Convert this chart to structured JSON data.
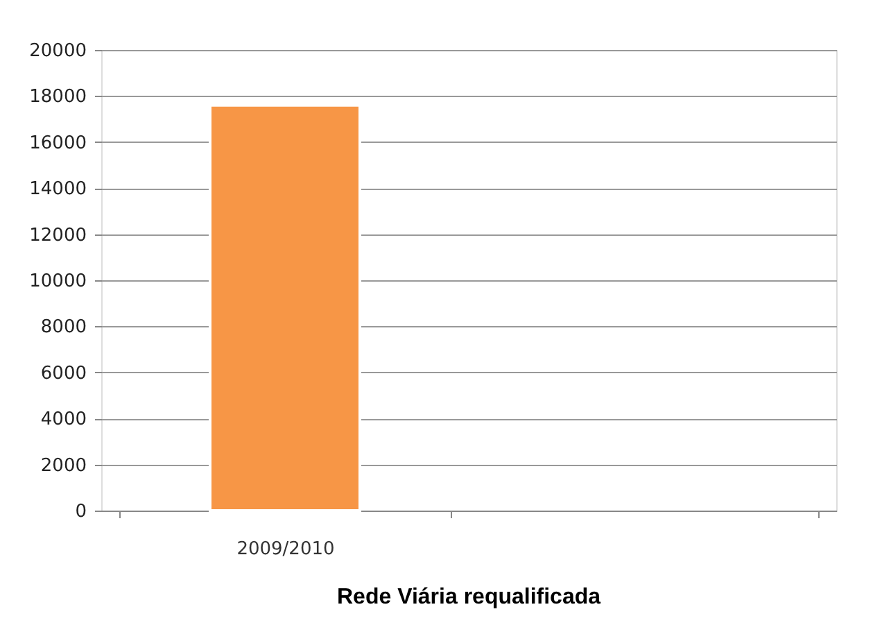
{
  "chart_data": {
    "type": "bar",
    "title": "Rede Viária requalificada",
    "categories": [
      "2009/2010",
      null
    ],
    "values": [
      17600,
      null
    ],
    "color": "#f79646",
    "ylim": [
      0,
      20000
    ],
    "yticks": [
      0,
      2000,
      4000,
      6000,
      8000,
      10000,
      12000,
      14000,
      16000,
      18000,
      20000
    ],
    "grid": "y"
  }
}
